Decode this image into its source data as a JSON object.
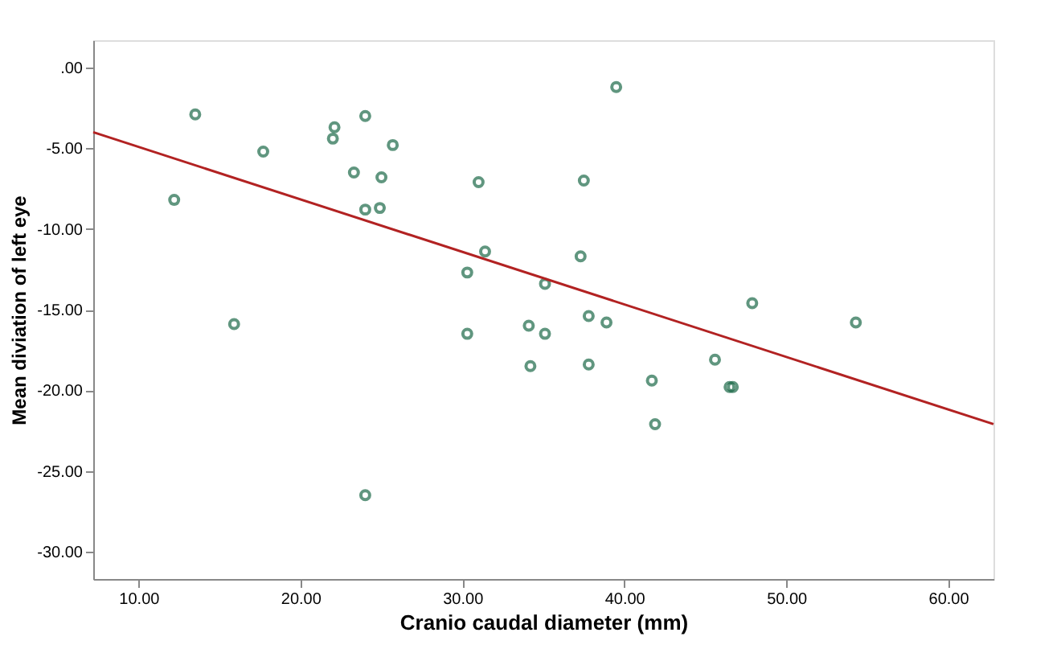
{
  "chart_data": {
    "type": "scatter",
    "xlabel": "Cranio caudal diameter (mm)",
    "ylabel": "Mean diviation of left eye",
    "xlim": [
      7.2,
      62.8
    ],
    "ylim": [
      -31.7,
      1.7
    ],
    "xticks": [
      {
        "value": 10,
        "label": "10.00"
      },
      {
        "value": 20,
        "label": "20.00"
      },
      {
        "value": 30,
        "label": "30.00"
      },
      {
        "value": 40,
        "label": "40.00"
      },
      {
        "value": 50,
        "label": "50.00"
      },
      {
        "value": 60,
        "label": "60.00"
      }
    ],
    "yticks": [
      {
        "value": 0,
        "label": ".00"
      },
      {
        "value": -5,
        "label": "-5.00"
      },
      {
        "value": -10,
        "label": "-10.00"
      },
      {
        "value": -15,
        "label": "-15.00"
      },
      {
        "value": -20,
        "label": "-20.00"
      },
      {
        "value": -25,
        "label": "-25.00"
      },
      {
        "value": -30,
        "label": "-30.00"
      }
    ],
    "grid": false,
    "marker": "circle",
    "series": [
      {
        "color": "#1e6b4a",
        "x": [
          13.5,
          12.2,
          17.7,
          22.1,
          22.0,
          24.0,
          25.7,
          23.3,
          25.0,
          24.0,
          24.9,
          31.0,
          15.9,
          30.3,
          31.4,
          39.5,
          37.5,
          37.3,
          35.1,
          47.9,
          54.3,
          34.1,
          35.1,
          37.8,
          38.9,
          30.3,
          34.2,
          37.8,
          45.6,
          41.7,
          46.5,
          46.7,
          41.9,
          24.0
        ],
        "values": [
          -2.9,
          -8.2,
          -5.2,
          -3.7,
          -4.4,
          -3.0,
          -4.8,
          -6.5,
          -6.8,
          -8.8,
          -8.7,
          -7.1,
          -15.9,
          -12.7,
          -11.4,
          -1.2,
          -7.0,
          -11.7,
          -13.4,
          -14.6,
          -15.8,
          -16.0,
          -16.5,
          -15.4,
          -15.8,
          -16.5,
          -18.5,
          -18.4,
          -18.1,
          -19.4,
          -19.8,
          -19.8,
          -22.1,
          -26.5
        ]
      },
      {
        "type": "line",
        "color": "#b22222",
        "line_style": "solid",
        "marker": "none",
        "x": [
          7.2,
          62.8
        ],
        "values": [
          -4.0,
          -22.1
        ]
      }
    ]
  }
}
